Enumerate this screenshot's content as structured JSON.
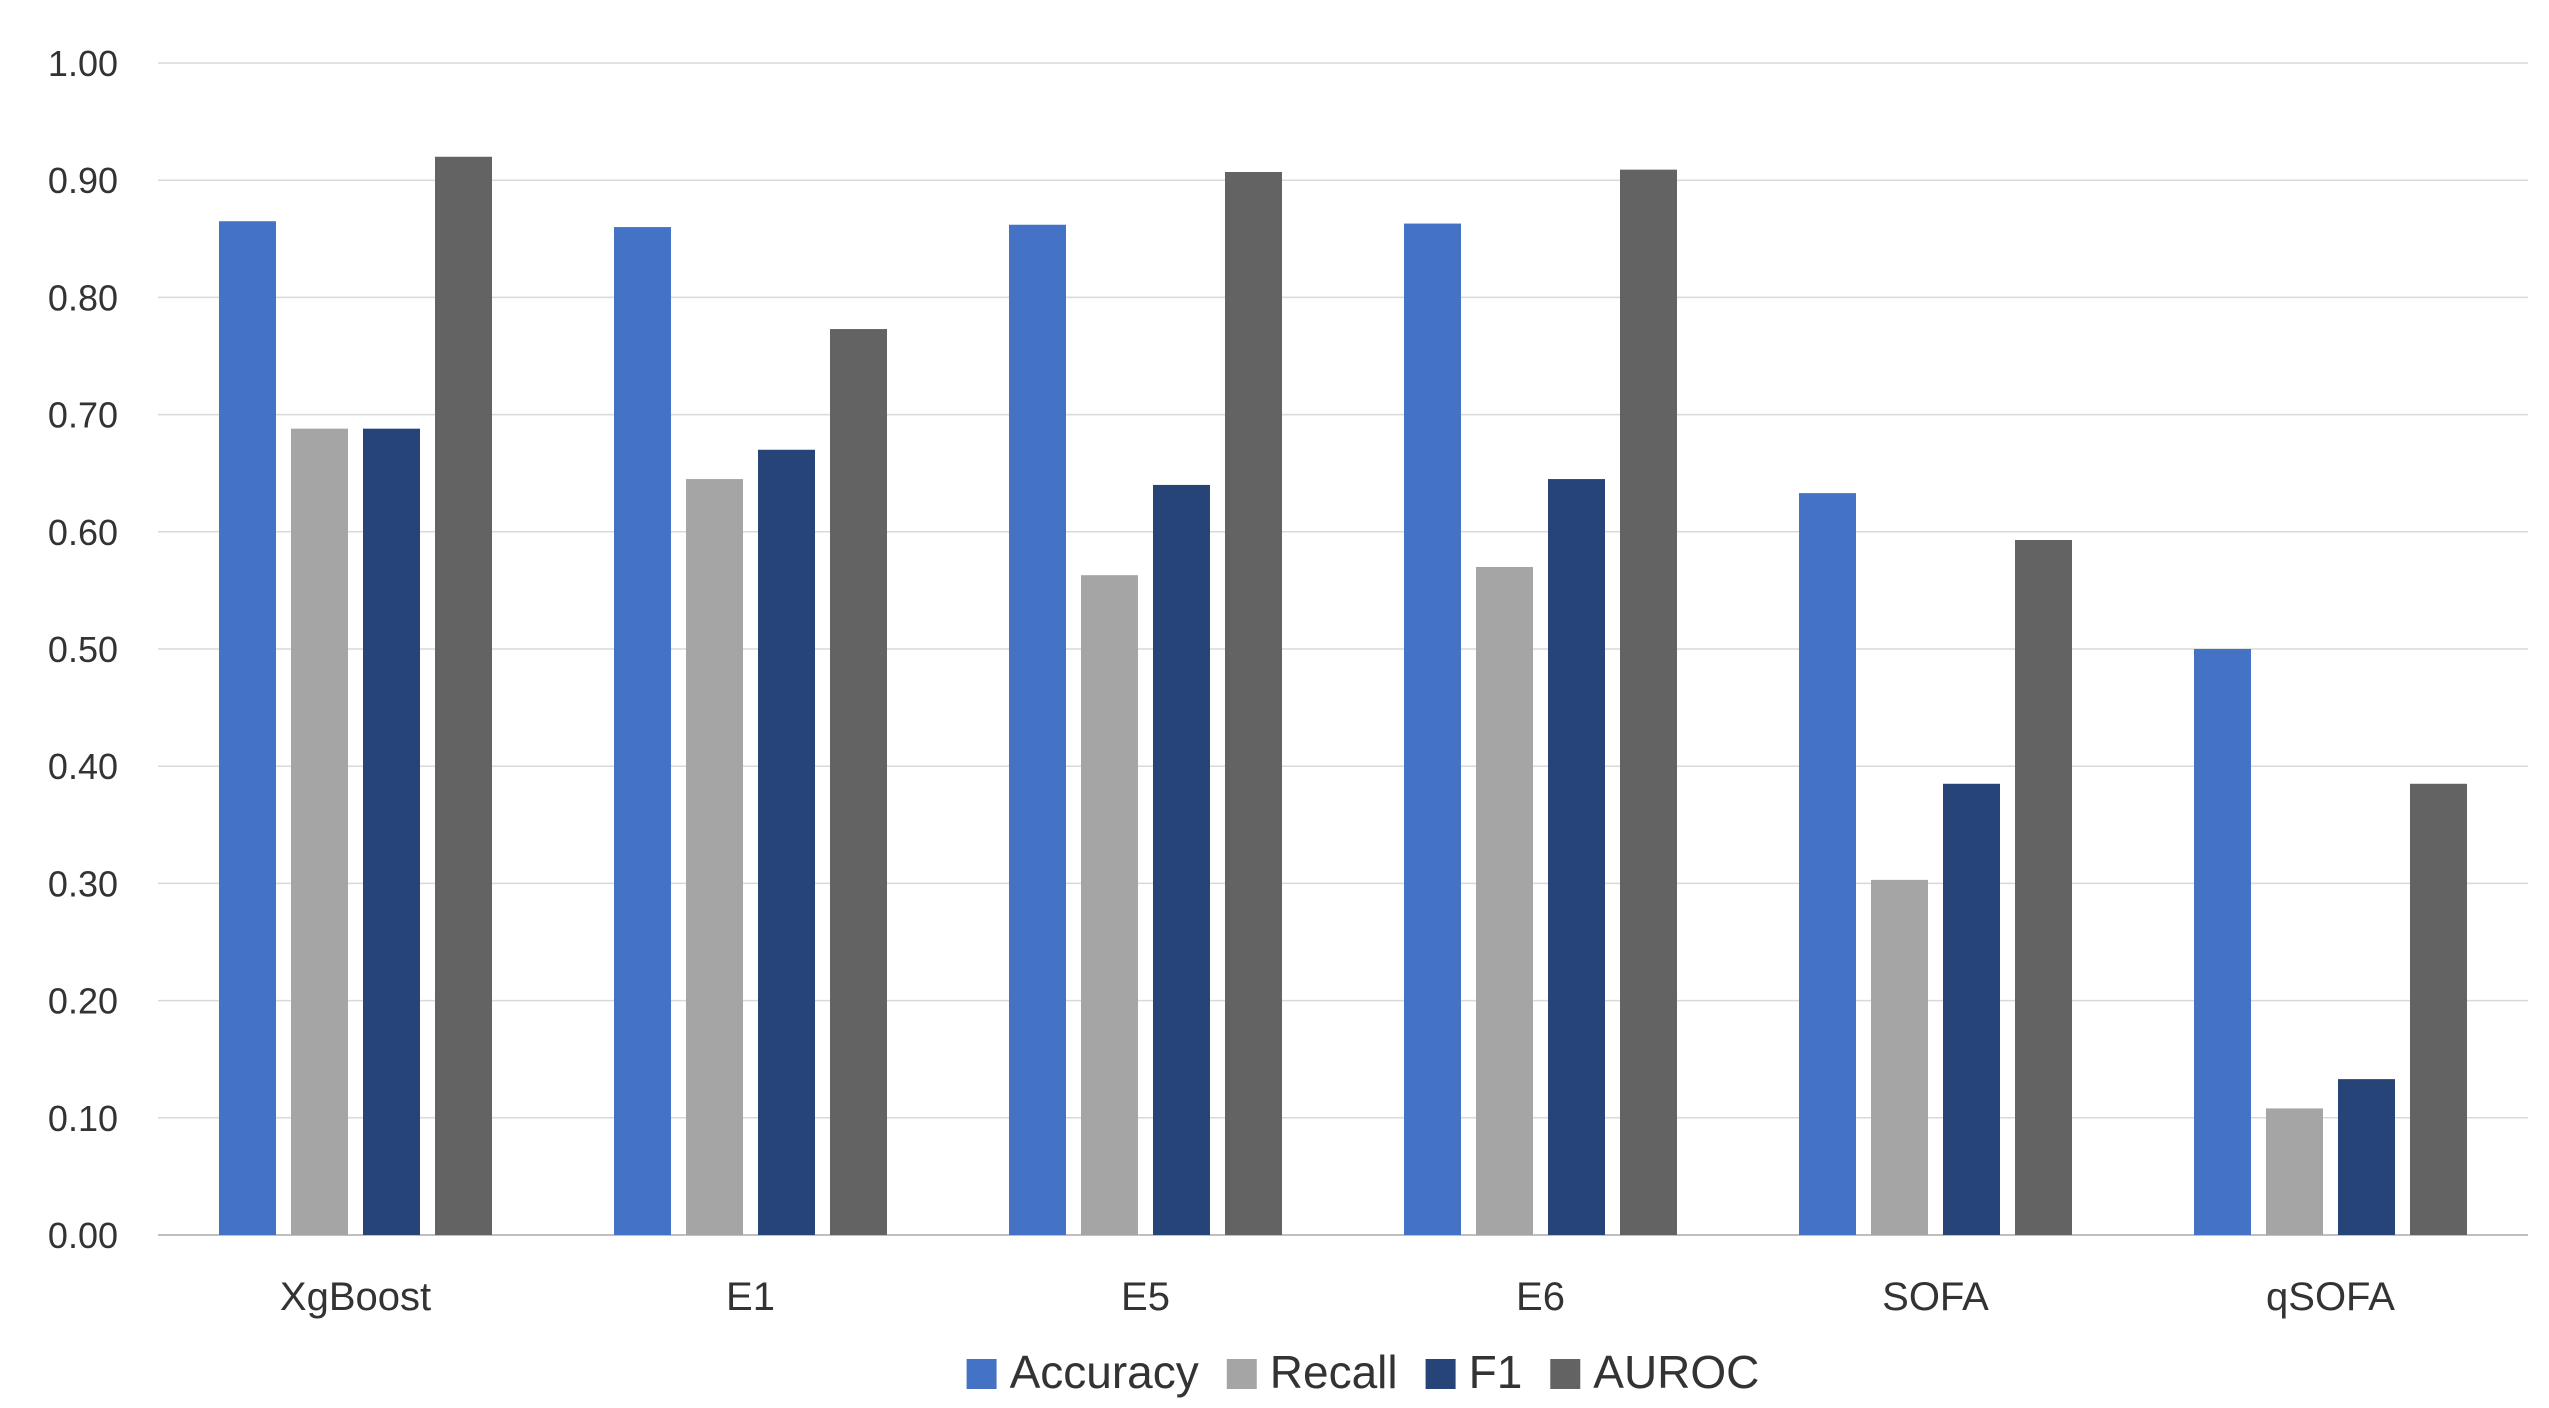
{
  "chart_data": {
    "type": "bar",
    "title": "",
    "xlabel": "",
    "ylabel": "",
    "ylim": [
      0,
      1
    ],
    "yticks": [
      "0.00",
      "0.10",
      "0.20",
      "0.30",
      "0.40",
      "0.50",
      "0.60",
      "0.70",
      "0.80",
      "0.90",
      "1.00"
    ],
    "grid": true,
    "legend_position": "bottom",
    "categories": [
      "XgBoost",
      "E1",
      "E5",
      "E6",
      "SOFA",
      "qSOFA"
    ],
    "series": [
      {
        "name": "Accuracy",
        "color": "#4472C4",
        "values": [
          0.865,
          0.86,
          0.862,
          0.863,
          0.633,
          0.5
        ]
      },
      {
        "name": "Recall",
        "color": "#A5A5A5",
        "values": [
          0.688,
          0.645,
          0.563,
          0.57,
          0.303,
          0.108
        ]
      },
      {
        "name": "F1",
        "color": "#264478",
        "values": [
          0.688,
          0.67,
          0.64,
          0.645,
          0.385,
          0.133
        ]
      },
      {
        "name": "AUROC",
        "color": "#636363",
        "values": [
          0.92,
          0.773,
          0.907,
          0.909,
          0.593,
          0.385
        ]
      }
    ]
  }
}
